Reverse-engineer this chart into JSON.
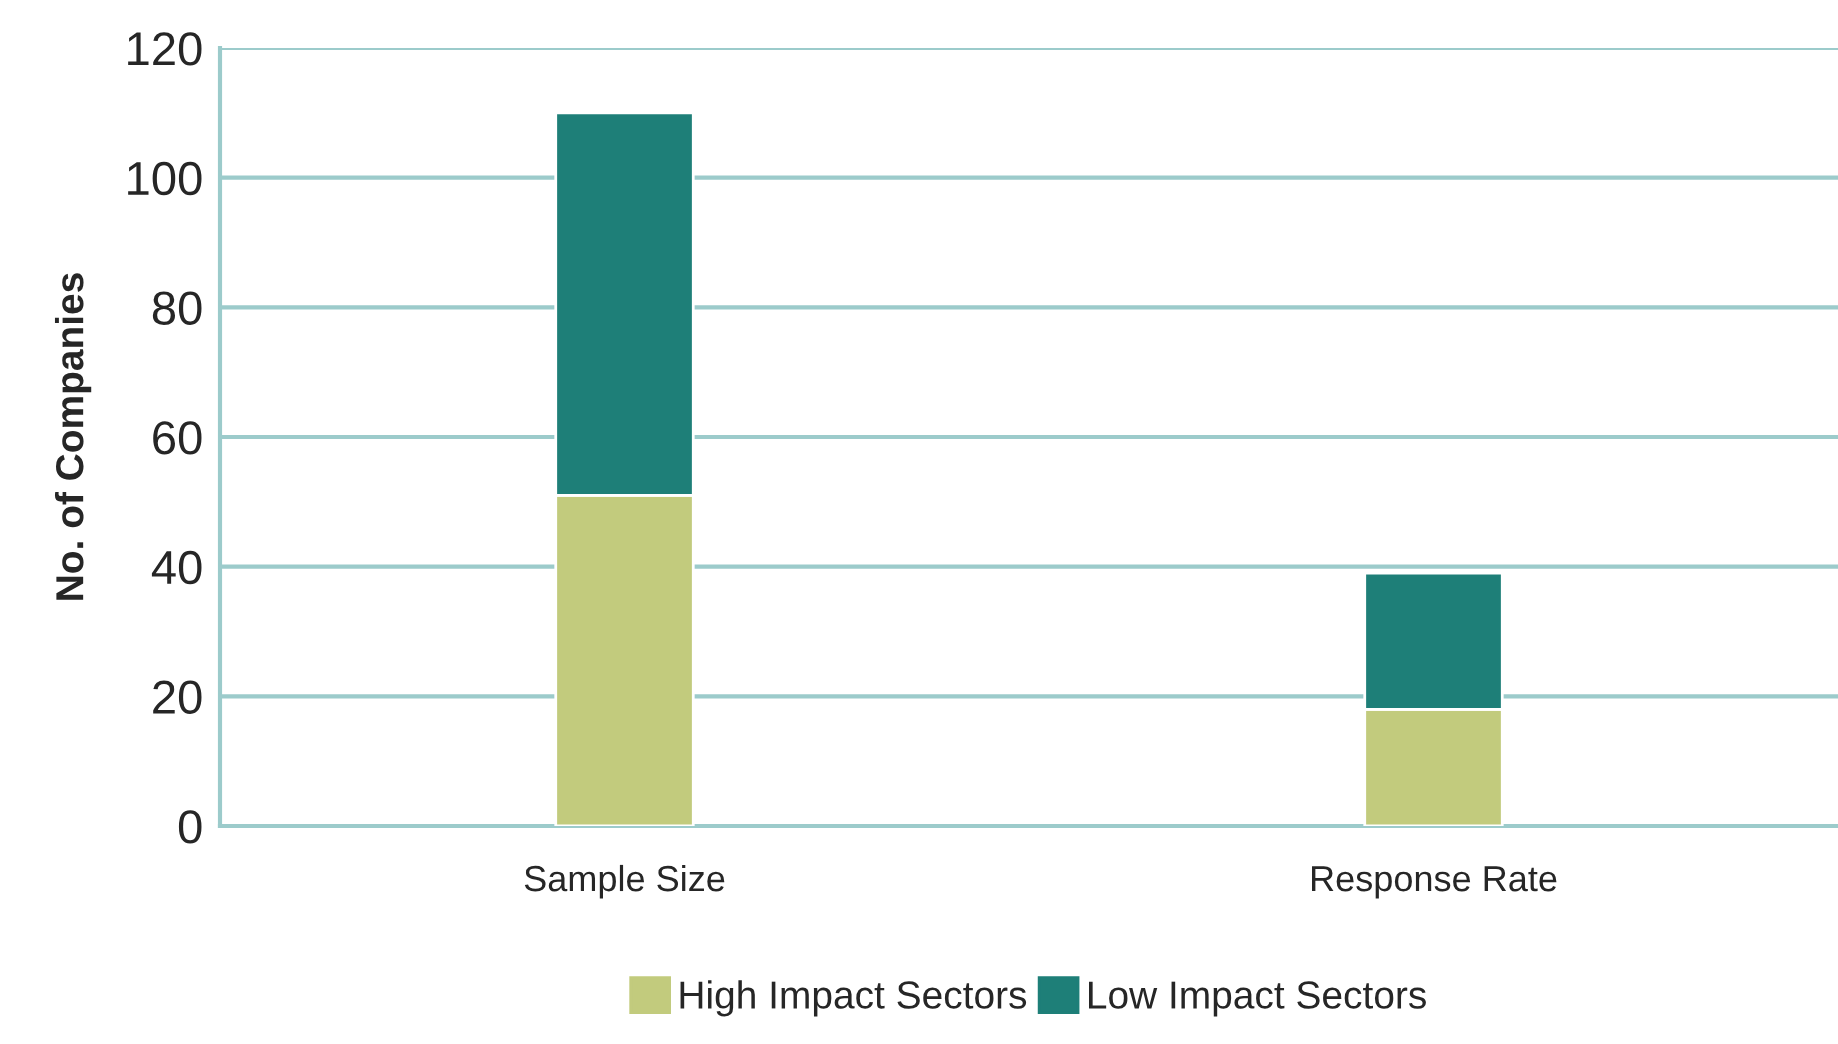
{
  "chart_data": {
    "type": "bar",
    "ylabel": "No. of Companies",
    "categories": [
      "Sample Size",
      "Response Rate"
    ],
    "stacked": true,
    "series": [
      {
        "name": "High Impact Sectors",
        "color": "#c2cb7d",
        "values": [
          51,
          18
        ]
      },
      {
        "name": "Low Impact Sectors",
        "color": "#1e7f78",
        "values": [
          59,
          21
        ]
      }
    ],
    "ylim": [
      0,
      120
    ],
    "yticks": [
      0,
      20,
      40,
      60,
      80,
      100,
      120
    ],
    "grid": "y",
    "legend": "bottom"
  }
}
